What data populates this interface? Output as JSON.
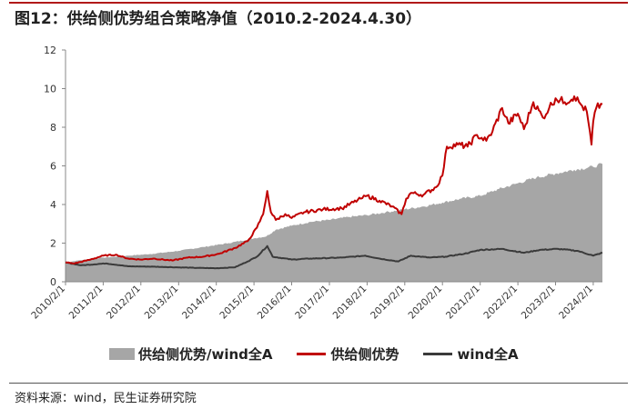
{
  "header": {
    "title": "图12：供给侧优势组合策略净值（2010.2-2024.4.30）"
  },
  "footer": {
    "source": "资料来源：wind，民生证券研究院"
  },
  "colors": {
    "area": "#a6a6a6",
    "supply": "#c00000",
    "wind": "#3a3a3a",
    "accent": "#b11919"
  },
  "chart_data": {
    "type": "line",
    "title": "图12：供给侧优势组合策略净值（2010.2-2024.4.30）",
    "x_ticks": [
      "2010/2/1",
      "2011/2/1",
      "2012/2/1",
      "2013/2/1",
      "2014/2/1",
      "2015/2/1",
      "2016/2/1",
      "2017/2/1",
      "2018/2/1",
      "2019/2/1",
      "2020/2/1",
      "2021/2/1",
      "2022/2/1",
      "2023/2/1",
      "2024/2/1"
    ],
    "x_range": [
      "2010-02-01",
      "2024-04-30"
    ],
    "ylim": [
      0,
      12
    ],
    "y_ticks": [
      0,
      2,
      4,
      6,
      8,
      10,
      12
    ],
    "grid": false,
    "legend_position": "bottom",
    "series": [
      {
        "name": "供给侧优势/wind全A",
        "type": "area",
        "x": [
          "2010-02-01",
          "2010-06-01",
          "2011-02-01",
          "2011-10-01",
          "2012-06-01",
          "2013-02-01",
          "2013-10-01",
          "2014-06-01",
          "2015-02-01",
          "2015-06-01",
          "2015-09-01",
          "2016-02-01",
          "2016-08-01",
          "2017-02-01",
          "2017-08-01",
          "2018-02-01",
          "2018-08-01",
          "2019-02-01",
          "2019-08-01",
          "2020-02-01",
          "2020-08-01",
          "2021-02-01",
          "2021-08-01",
          "2022-02-01",
          "2022-08-01",
          "2023-02-01",
          "2023-08-01",
          "2024-02-01",
          "2024-04-30"
        ],
        "values": [
          1.0,
          1.1,
          1.25,
          1.35,
          1.45,
          1.6,
          1.8,
          2.0,
          2.25,
          2.35,
          2.7,
          2.9,
          3.1,
          3.2,
          3.35,
          3.45,
          3.6,
          3.75,
          3.9,
          4.1,
          4.3,
          4.45,
          4.8,
          5.1,
          5.4,
          5.6,
          5.8,
          5.95,
          6.1
        ]
      },
      {
        "name": "供给侧优势",
        "type": "line",
        "x": [
          "2010-02-01",
          "2010-05-01",
          "2010-10-01",
          "2011-02-01",
          "2011-06-01",
          "2011-10-01",
          "2012-02-01",
          "2012-06-01",
          "2012-12-01",
          "2013-05-01",
          "2013-10-01",
          "2014-03-01",
          "2014-08-01",
          "2014-12-01",
          "2015-03-01",
          "2015-05-01",
          "2015-06-10",
          "2015-07-15",
          "2015-09-01",
          "2015-12-01",
          "2016-02-01",
          "2016-06-01",
          "2016-12-01",
          "2017-06-01",
          "2017-12-01",
          "2018-02-01",
          "2018-06-01",
          "2018-10-01",
          "2019-01-01",
          "2019-02-15",
          "2019-04-01",
          "2019-08-01",
          "2019-12-01",
          "2020-02-01",
          "2020-03-15",
          "2020-07-01",
          "2020-10-01",
          "2021-01-01",
          "2021-04-01",
          "2021-06-01",
          "2021-09-01",
          "2021-11-01",
          "2022-02-01",
          "2022-04-01",
          "2022-07-01",
          "2022-10-01",
          "2022-12-01",
          "2023-02-01",
          "2023-05-01",
          "2023-08-01",
          "2023-10-01",
          "2023-12-01",
          "2024-01-15",
          "2024-02-01",
          "2024-03-01",
          "2024-04-30"
        ],
        "values": [
          1.0,
          0.95,
          1.15,
          1.35,
          1.4,
          1.2,
          1.15,
          1.2,
          1.1,
          1.25,
          1.3,
          1.45,
          1.75,
          2.1,
          2.8,
          3.5,
          4.7,
          3.6,
          3.2,
          3.5,
          3.3,
          3.6,
          3.75,
          3.8,
          4.3,
          4.45,
          4.2,
          3.9,
          3.5,
          4.3,
          4.6,
          4.5,
          4.9,
          5.5,
          7.0,
          7.1,
          7.0,
          7.6,
          7.3,
          7.8,
          9.0,
          8.2,
          8.7,
          7.9,
          9.3,
          8.5,
          9.0,
          9.5,
          9.3,
          9.6,
          9.2,
          8.8,
          7.1,
          8.3,
          9.0,
          9.2
        ]
      },
      {
        "name": "wind全A",
        "type": "line",
        "x": [
          "2010-02-01",
          "2010-07-01",
          "2011-03-01",
          "2011-10-01",
          "2012-06-01",
          "2013-01-01",
          "2013-07-01",
          "2014-02-01",
          "2014-08-01",
          "2014-12-01",
          "2015-03-01",
          "2015-06-10",
          "2015-08-01",
          "2016-02-01",
          "2016-08-01",
          "2017-06-01",
          "2018-01-15",
          "2018-06-01",
          "2018-12-01",
          "2019-04-01",
          "2019-10-01",
          "2020-03-01",
          "2020-09-01",
          "2021-02-01",
          "2021-09-01",
          "2022-04-01",
          "2022-09-01",
          "2023-03-01",
          "2023-09-01",
          "2024-02-01",
          "2024-04-30"
        ],
        "values": [
          1.0,
          0.85,
          0.95,
          0.8,
          0.78,
          0.75,
          0.72,
          0.7,
          0.75,
          1.05,
          1.3,
          1.85,
          1.3,
          1.15,
          1.2,
          1.25,
          1.35,
          1.2,
          1.05,
          1.35,
          1.25,
          1.3,
          1.45,
          1.65,
          1.7,
          1.5,
          1.65,
          1.7,
          1.6,
          1.35,
          1.5
        ]
      }
    ]
  }
}
